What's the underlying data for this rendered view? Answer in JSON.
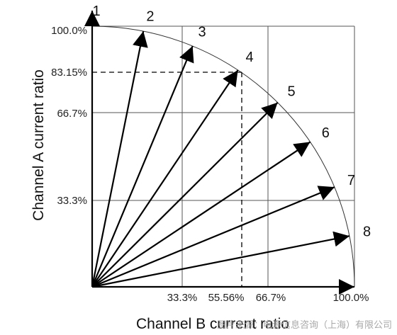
{
  "axes": {
    "x_title": "Channel B current ratio",
    "y_title": "Channel A current ratio",
    "x_ticks": [
      "33.3%",
      "55.56%",
      "66.7%",
      "100.0%"
    ],
    "y_ticks": [
      "100.0%",
      "83.15%",
      "66.7%",
      "33.3%"
    ]
  },
  "vectors": [
    {
      "label": "1",
      "a_ratio": 1.0,
      "b_ratio": 0.0
    },
    {
      "label": "2",
      "a_ratio": 0.981,
      "b_ratio": 0.195
    },
    {
      "label": "3",
      "a_ratio": 0.924,
      "b_ratio": 0.383
    },
    {
      "label": "4",
      "a_ratio": 0.8315,
      "b_ratio": 0.5556
    },
    {
      "label": "5",
      "a_ratio": 0.707,
      "b_ratio": 0.707
    },
    {
      "label": "6",
      "a_ratio": 0.556,
      "b_ratio": 0.831
    },
    {
      "label": "7",
      "a_ratio": 0.383,
      "b_ratio": 0.924
    },
    {
      "label": "8",
      "a_ratio": 0.195,
      "b_ratio": 0.981
    }
  ],
  "watermark": "图片来源：电源信息咨询（上海）有限公司"
}
